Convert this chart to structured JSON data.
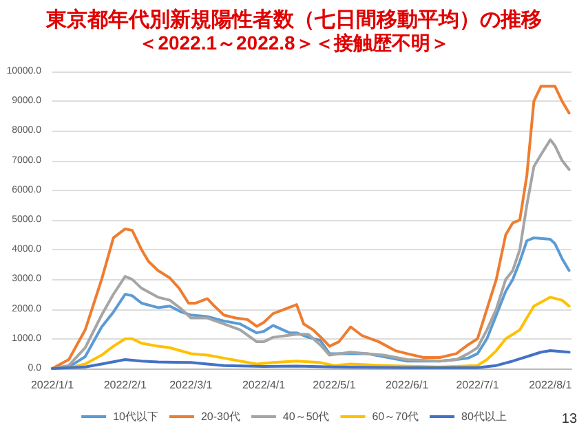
{
  "chart_data": {
    "type": "line",
    "title": "東京都年代別新規陽性者数（七日間移動平均）の推移",
    "subtitle": "＜2022.1～2022.8＞＜接触歴不明＞",
    "xlim": [
      "2022-01-01",
      "2022-08-10"
    ],
    "xticks": [
      {
        "value": "2022-01-01",
        "label": "2022/1/1"
      },
      {
        "value": "2022-02-01",
        "label": "2022/2/1"
      },
      {
        "value": "2022-03-01",
        "label": "2022/3/1"
      },
      {
        "value": "2022-04-01",
        "label": "2022/4/1"
      },
      {
        "value": "2022-05-01",
        "label": "2022/5/1"
      },
      {
        "value": "2022-06-01",
        "label": "2022/6/1"
      },
      {
        "value": "2022-07-01",
        "label": "2022/7/1"
      },
      {
        "value": "2022-08-01",
        "label": "2022/8/1"
      }
    ],
    "ylim": [
      0,
      10000
    ],
    "yticks": [
      {
        "value": 0,
        "label": "0.0"
      },
      {
        "value": 1000,
        "label": "1000.0"
      },
      {
        "value": 2000,
        "label": "2000.0"
      },
      {
        "value": 3000,
        "label": "3000.0"
      },
      {
        "value": 4000,
        "label": "4000.0"
      },
      {
        "value": 5000,
        "label": "5000.0"
      },
      {
        "value": 6000,
        "label": "6000.0"
      },
      {
        "value": 7000,
        "label": "7000.0"
      },
      {
        "value": 8000,
        "label": "8000.0"
      },
      {
        "value": 9000,
        "label": "9000.0"
      },
      {
        "value": 10000,
        "label": "10000.0"
      }
    ],
    "grid": "y",
    "legend": "bottom",
    "marker": "none",
    "line_style": "solid",
    "series": [
      {
        "name": "10代以下",
        "color": "#5b9bd5",
        "x": [
          "2022-01-01",
          "2022-01-08",
          "2022-01-15",
          "2022-01-22",
          "2022-01-27",
          "2022-02-01",
          "2022-02-04",
          "2022-02-08",
          "2022-02-15",
          "2022-02-20",
          "2022-02-25",
          "2022-03-01",
          "2022-03-08",
          "2022-03-15",
          "2022-03-22",
          "2022-03-29",
          "2022-04-01",
          "2022-04-05",
          "2022-04-12",
          "2022-04-15",
          "2022-04-20",
          "2022-04-25",
          "2022-04-29",
          "2022-05-08",
          "2022-05-15",
          "2022-05-22",
          "2022-06-01",
          "2022-06-15",
          "2022-06-22",
          "2022-06-27",
          "2022-07-01",
          "2022-07-05",
          "2022-07-09",
          "2022-07-13",
          "2022-07-16",
          "2022-07-19",
          "2022-07-22",
          "2022-07-25",
          "2022-08-01",
          "2022-08-03",
          "2022-08-06",
          "2022-08-09"
        ],
        "values": [
          0,
          50,
          400,
          1400,
          1900,
          2500,
          2450,
          2200,
          2050,
          2100,
          1900,
          1800,
          1750,
          1600,
          1500,
          1200,
          1250,
          1450,
          1200,
          1200,
          1050,
          950,
          500,
          500,
          500,
          400,
          250,
          250,
          300,
          350,
          500,
          1000,
          1800,
          2600,
          3000,
          3600,
          4300,
          4400,
          4350,
          4200,
          3700,
          3300
        ]
      },
      {
        "name": "20-30代",
        "color": "#ed7d31",
        "x": [
          "2022-01-01",
          "2022-01-08",
          "2022-01-15",
          "2022-01-22",
          "2022-01-27",
          "2022-02-01",
          "2022-02-04",
          "2022-02-08",
          "2022-02-11",
          "2022-02-15",
          "2022-02-20",
          "2022-02-24",
          "2022-02-28",
          "2022-03-03",
          "2022-03-08",
          "2022-03-11",
          "2022-03-15",
          "2022-03-20",
          "2022-03-25",
          "2022-03-29",
          "2022-04-01",
          "2022-04-05",
          "2022-04-10",
          "2022-04-15",
          "2022-04-18",
          "2022-04-22",
          "2022-04-26",
          "2022-04-29",
          "2022-05-03",
          "2022-05-08",
          "2022-05-13",
          "2022-05-20",
          "2022-05-27",
          "2022-06-01",
          "2022-06-08",
          "2022-06-15",
          "2022-06-22",
          "2022-06-27",
          "2022-07-01",
          "2022-07-05",
          "2022-07-09",
          "2022-07-13",
          "2022-07-16",
          "2022-07-19",
          "2022-07-22",
          "2022-07-25",
          "2022-07-28",
          "2022-08-01",
          "2022-08-03",
          "2022-08-06",
          "2022-08-09"
        ],
        "values": [
          0,
          300,
          1300,
          3000,
          4400,
          4700,
          4650,
          4000,
          3600,
          3300,
          3050,
          2700,
          2200,
          2200,
          2350,
          2100,
          1800,
          1700,
          1650,
          1420,
          1550,
          1850,
          2000,
          2150,
          1500,
          1300,
          1000,
          750,
          900,
          1400,
          1100,
          900,
          600,
          500,
          370,
          370,
          500,
          800,
          1000,
          2000,
          3000,
          4500,
          4900,
          5000,
          6500,
          9000,
          9500,
          9500,
          9500,
          9000,
          8600
        ]
      },
      {
        "name": "40～50代",
        "color": "#a5a5a5",
        "x": [
          "2022-01-01",
          "2022-01-08",
          "2022-01-15",
          "2022-01-22",
          "2022-01-27",
          "2022-02-01",
          "2022-02-04",
          "2022-02-08",
          "2022-02-15",
          "2022-02-20",
          "2022-02-25",
          "2022-03-01",
          "2022-03-08",
          "2022-03-15",
          "2022-03-22",
          "2022-03-29",
          "2022-04-01",
          "2022-04-05",
          "2022-04-15",
          "2022-04-20",
          "2022-04-25",
          "2022-04-29",
          "2022-05-08",
          "2022-05-15",
          "2022-05-22",
          "2022-06-01",
          "2022-06-15",
          "2022-06-22",
          "2022-06-27",
          "2022-07-01",
          "2022-07-05",
          "2022-07-09",
          "2022-07-13",
          "2022-07-16",
          "2022-07-19",
          "2022-07-22",
          "2022-07-25",
          "2022-07-28",
          "2022-08-01",
          "2022-08-03",
          "2022-08-06",
          "2022-08-09"
        ],
        "values": [
          0,
          100,
          700,
          1800,
          2500,
          3100,
          3000,
          2700,
          2400,
          2300,
          2000,
          1700,
          1700,
          1500,
          1300,
          900,
          900,
          1050,
          1150,
          1150,
          800,
          450,
          550,
          500,
          450,
          300,
          250,
          300,
          500,
          700,
          1300,
          2000,
          3000,
          3300,
          4000,
          5500,
          6800,
          7200,
          7700,
          7500,
          7000,
          6700
        ]
      },
      {
        "name": "60～70代",
        "color": "#ffc000",
        "x": [
          "2022-01-01",
          "2022-01-08",
          "2022-01-15",
          "2022-01-22",
          "2022-01-27",
          "2022-02-01",
          "2022-02-04",
          "2022-02-08",
          "2022-02-15",
          "2022-02-20",
          "2022-03-01",
          "2022-03-08",
          "2022-03-15",
          "2022-03-22",
          "2022-03-29",
          "2022-04-05",
          "2022-04-15",
          "2022-04-25",
          "2022-05-01",
          "2022-05-08",
          "2022-05-22",
          "2022-06-15",
          "2022-07-01",
          "2022-07-05",
          "2022-07-09",
          "2022-07-13",
          "2022-07-19",
          "2022-07-25",
          "2022-08-01",
          "2022-08-06",
          "2022-08-09"
        ],
        "values": [
          0,
          20,
          150,
          450,
          750,
          1000,
          1000,
          850,
          750,
          700,
          500,
          450,
          350,
          250,
          150,
          200,
          250,
          200,
          100,
          150,
          100,
          50,
          100,
          300,
          600,
          1000,
          1300,
          2100,
          2400,
          2300,
          2100
        ]
      },
      {
        "name": "80代以上",
        "color": "#4472c4",
        "x": [
          "2022-01-01",
          "2022-01-15",
          "2022-01-22",
          "2022-02-01",
          "2022-02-08",
          "2022-02-15",
          "2022-03-01",
          "2022-03-15",
          "2022-04-01",
          "2022-04-15",
          "2022-05-01",
          "2022-06-01",
          "2022-07-01",
          "2022-07-09",
          "2022-07-16",
          "2022-07-22",
          "2022-07-28",
          "2022-08-01",
          "2022-08-09"
        ],
        "values": [
          0,
          50,
          150,
          300,
          250,
          220,
          200,
          100,
          70,
          80,
          50,
          30,
          30,
          100,
          250,
          400,
          550,
          600,
          550
        ]
      }
    ],
    "annotations": [
      "13"
    ]
  }
}
